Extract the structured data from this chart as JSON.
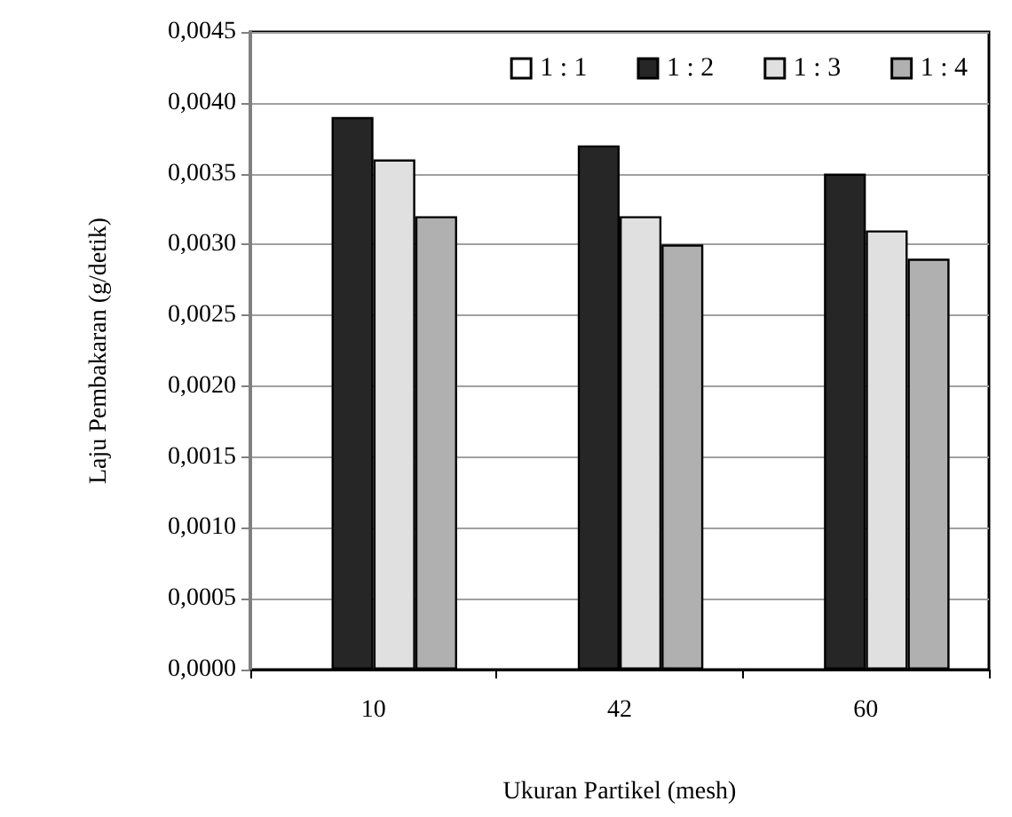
{
  "chart_data": {
    "type": "bar",
    "xlabel": "Ukuran Partikel (mesh)",
    "ylabel": "Laju Pembakaran (g/detik)",
    "categories": [
      "10",
      "42",
      "60"
    ],
    "series": [
      {
        "name": "1 : 1",
        "color": "#ffffff",
        "values": [
          null,
          null,
          null
        ]
      },
      {
        "name": "1 : 2",
        "color": "#262626",
        "values": [
          0.0039,
          0.0037,
          0.0035
        ]
      },
      {
        "name": "1 : 3",
        "color": "#e0e0e0",
        "values": [
          0.0036,
          0.0032,
          0.0031
        ]
      },
      {
        "name": "1 : 4",
        "color": "#b0b0b0",
        "values": [
          0.0032,
          0.003,
          0.0029
        ]
      }
    ],
    "ylim": [
      0,
      0.0045
    ],
    "yticks": [
      {
        "value": 0,
        "label": "0,0000"
      },
      {
        "value": 0.0005,
        "label": "0,0005"
      },
      {
        "value": 0.001,
        "label": "0,0010"
      },
      {
        "value": 0.0015,
        "label": "0,0015"
      },
      {
        "value": 0.002,
        "label": "0,0020"
      },
      {
        "value": 0.0025,
        "label": "0,0025"
      },
      {
        "value": 0.003,
        "label": "0,0030"
      },
      {
        "value": 0.0035,
        "label": "0,0035"
      },
      {
        "value": 0.004,
        "label": "0,0040"
      },
      {
        "value": 0.0045,
        "label": "0,0045"
      }
    ],
    "grid": "y",
    "legend": "top right"
  }
}
